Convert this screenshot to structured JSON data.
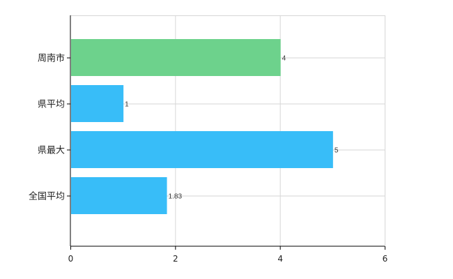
{
  "chart_data": {
    "type": "bar",
    "orientation": "horizontal",
    "categories": [
      "周南市",
      "県平均",
      "県最大",
      "全国平均"
    ],
    "values": [
      4,
      1,
      5,
      1.83
    ],
    "value_labels": [
      "4",
      "1",
      "5",
      "1.83"
    ],
    "bar_colors": [
      "#6dd28c",
      "#38bdf8",
      "#38bdf8",
      "#38bdf8"
    ],
    "xlim": [
      0,
      6
    ],
    "x_ticks": [
      0,
      2,
      4,
      6
    ],
    "x_tick_labels": [
      "0",
      "2",
      "4",
      "6"
    ],
    "grid": true,
    "title": "",
    "xlabel": "",
    "ylabel": ""
  }
}
